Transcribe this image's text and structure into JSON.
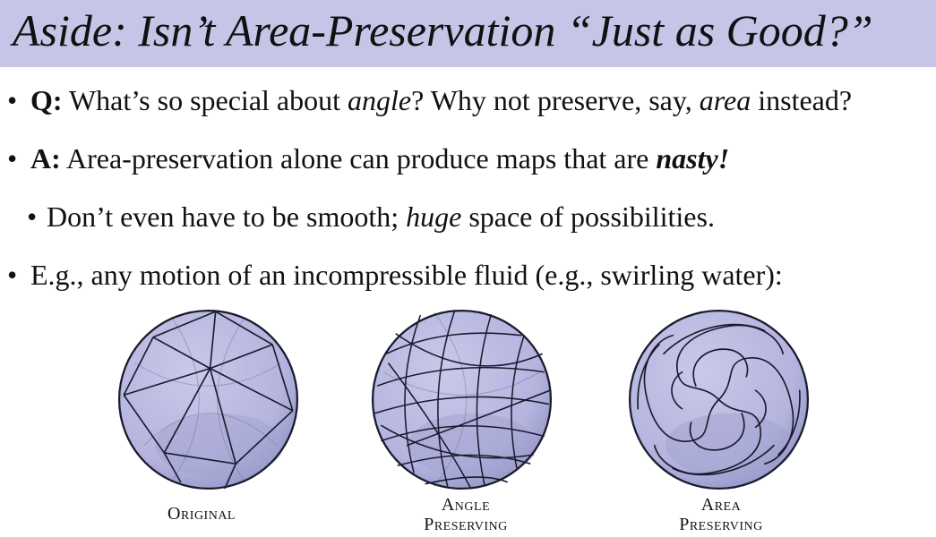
{
  "title": "Aside: Isn’t Area-Preservation “Just as Good?”",
  "bullets": {
    "b1": {
      "dot": "•",
      "lead": "Q:",
      "t1": " What’s so special about ",
      "em1": "angle",
      "t2": "?  Why not preserve, say, ",
      "em2": "area",
      "t3": " instead?"
    },
    "b2": {
      "dot": "•",
      "lead": "A:",
      "t1": " Area-preservation alone can produce maps that are ",
      "em1": "nasty!"
    },
    "b3": {
      "dot": "•",
      "t1": "Don’t even have to be smooth; ",
      "em1": "huge",
      "t2": " space of possibilities."
    },
    "b4": {
      "dot": "•",
      "t1": "E.g., any motion of an incompressible fluid (e.g., swirling water):"
    }
  },
  "captions": {
    "original": [
      "Original"
    ],
    "angle": [
      "Angle",
      "Preserving"
    ],
    "area": [
      "Area",
      "Preserving"
    ]
  },
  "colors": {
    "title_bar": "#c5c5e8",
    "sphere_fill": "#b7b7df",
    "sphere_shade": "#9a9acb",
    "line": "#1a1a2e"
  }
}
